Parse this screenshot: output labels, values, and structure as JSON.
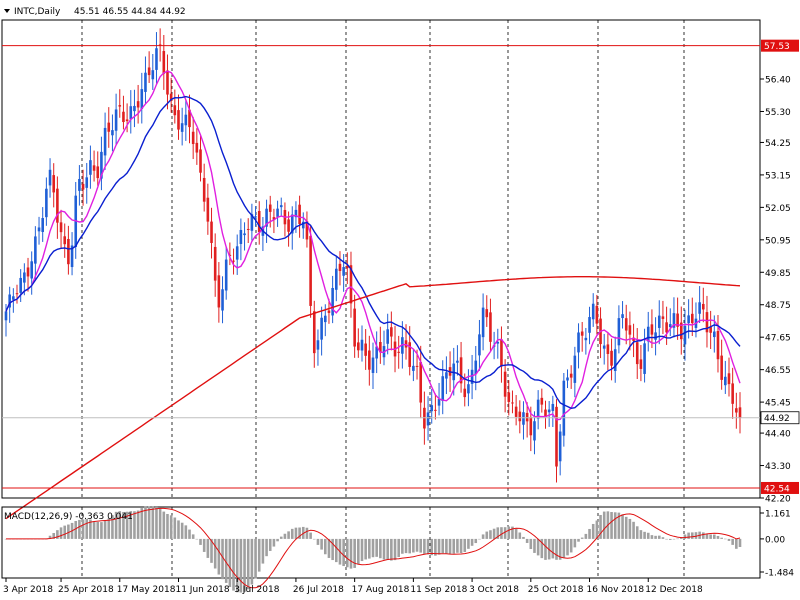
{
  "header": {
    "symbol": "INTC,Daily",
    "ohlc": "45.51 46.55 44.84 44.92",
    "macd_label": "MACD(12,26,9) -0.363 0.041"
  },
  "colors": {
    "bull": "#1f5fd6",
    "bear": "#e02020",
    "ma_fast": "#e020e0",
    "ma_mid": "#0a1fd0",
    "ma_slow": "#e01010",
    "hline": "#e01010",
    "current_price": "#bfbfbf",
    "grid_v": "#000000",
    "macd_hist": "#a0a0a0",
    "macd_signal": "#e01010"
  },
  "chart_data": {
    "type": "candlestick",
    "symbol": "INTC",
    "timeframe": "Daily",
    "ylim": [
      42.2,
      58.4
    ],
    "y_ticks": [
      "56.40",
      "55.30",
      "54.25",
      "53.15",
      "52.05",
      "50.95",
      "49.85",
      "48.75",
      "47.65",
      "46.55",
      "45.45",
      "44.40",
      "43.30",
      "42.20"
    ],
    "y_tick_values": [
      56.4,
      55.3,
      54.25,
      53.15,
      52.05,
      50.95,
      49.85,
      48.75,
      47.65,
      46.55,
      45.45,
      44.4,
      43.3,
      42.2
    ],
    "x_labels": [
      "3 Apr 2018",
      "25 Apr 2018",
      "17 May 2018",
      "11 Jun 2018",
      "3 Jul 2018",
      "26 Jul 2018",
      "17 Aug 2018",
      "11 Sep 2018",
      "3 Oct 2018",
      "25 Oct 2018",
      "16 Nov 2018",
      "12 Dec 2018"
    ],
    "x_label_index": [
      0,
      15,
      31,
      47,
      63,
      79,
      95,
      111,
      127,
      143,
      159,
      175
    ],
    "price_levels": [
      {
        "label": "57.53",
        "value": 57.53
      },
      {
        "label": "42.54",
        "value": 42.54
      }
    ],
    "current_price": {
      "label": "44.92",
      "value": 44.92
    },
    "waypoints": [
      [
        0,
        48.3
      ],
      [
        4,
        49.6
      ],
      [
        8,
        50.8
      ],
      [
        12,
        52.8
      ],
      [
        17,
        50.5
      ],
      [
        20,
        52.6
      ],
      [
        24,
        53.4
      ],
      [
        28,
        54.8
      ],
      [
        33,
        55.1
      ],
      [
        37,
        56.2
      ],
      [
        42,
        57.1
      ],
      [
        46,
        55.3
      ],
      [
        50,
        54.6
      ],
      [
        54,
        52.6
      ],
      [
        58,
        49.0
      ],
      [
        62,
        50.4
      ],
      [
        66,
        51.8
      ],
      [
        70,
        51.3
      ],
      [
        74,
        52.1
      ],
      [
        78,
        51.6
      ],
      [
        81,
        51.5
      ],
      [
        84,
        47.6
      ],
      [
        88,
        48.8
      ],
      [
        92,
        50.1
      ],
      [
        96,
        47.5
      ],
      [
        100,
        46.6
      ],
      [
        104,
        47.8
      ],
      [
        108,
        47.3
      ],
      [
        112,
        46.2
      ],
      [
        114,
        45.0
      ],
      [
        118,
        45.7
      ],
      [
        122,
        46.6
      ],
      [
        126,
        46.1
      ],
      [
        130,
        48.1
      ],
      [
        134,
        47.3
      ],
      [
        138,
        45.1
      ],
      [
        142,
        44.5
      ],
      [
        146,
        45.6
      ],
      [
        149,
        44.9
      ],
      [
        150,
        43.2
      ],
      [
        152,
        45.8
      ],
      [
        156,
        47.7
      ],
      [
        160,
        48.2
      ],
      [
        164,
        47.0
      ],
      [
        168,
        48.3
      ],
      [
        172,
        46.7
      ],
      [
        176,
        48.2
      ],
      [
        180,
        47.9
      ],
      [
        184,
        48.1
      ],
      [
        188,
        48.5
      ],
      [
        192,
        47.8
      ],
      [
        195,
        46.8
      ],
      [
        198,
        45.5
      ],
      [
        200,
        44.92
      ]
    ],
    "macd_range": [
      -1.484,
      1.161
    ],
    "macd_ticks": [
      "1.161",
      "0.00",
      "-1.484"
    ],
    "macd_tick_values": [
      1.161,
      0.0,
      -1.484
    ],
    "macd": {
      "value": -0.363,
      "signal": 0.041
    }
  }
}
